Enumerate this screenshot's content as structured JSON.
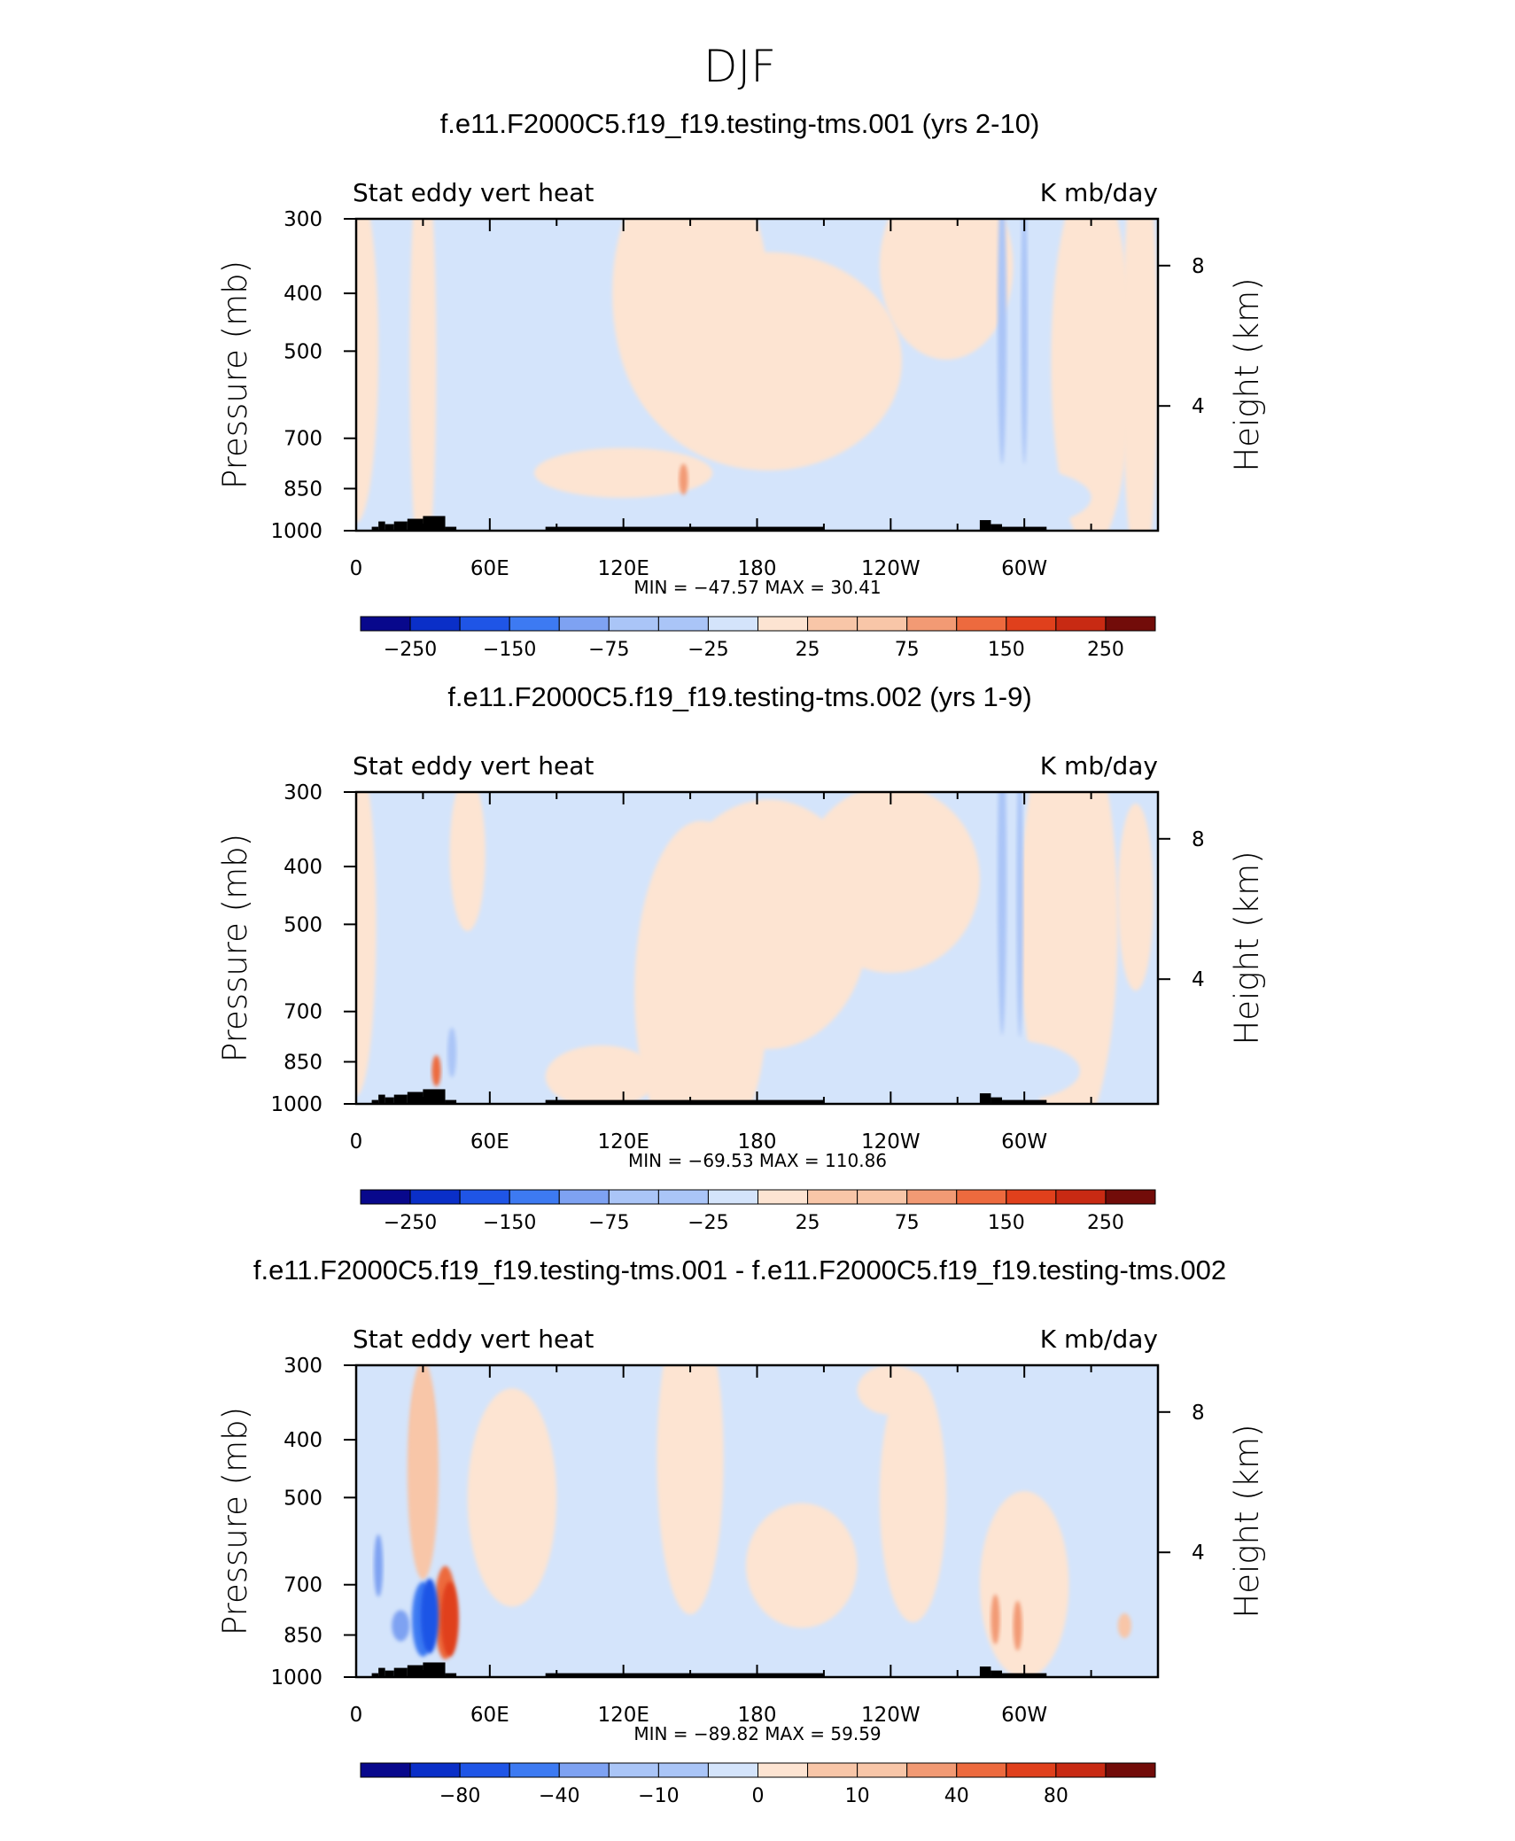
{
  "figure_title": "DJF",
  "colors": {
    "scale": [
      "#08088c",
      "#0a2fc8",
      "#1f55e6",
      "#3d7af2",
      "#7ea2f2",
      "#aac5f7",
      "#d4e4fb",
      "#fde4d2",
      "#f8c6a8",
      "#f29a74",
      "#ed6a3e",
      "#e0401c",
      "#c82a13",
      "#a11a0e",
      "#720c09"
    ],
    "topography": "#000000"
  },
  "chart_data": [
    {
      "type": "heatmap",
      "title": "f.e11.F2000C5.f19_f19.testing-tms.001 (yrs 2-10)",
      "left_string": "Stat eddy vert heat",
      "right_string": "K mb/day",
      "ylabel": "Pressure (mb)",
      "ylabel_right": "Height (km)",
      "x_ticks": [
        "0",
        "60E",
        "120E",
        "180",
        "120W",
        "60W"
      ],
      "y_ticks": [
        "300",
        "400",
        "500",
        "700",
        "850",
        "1000"
      ],
      "y_right_ticks": [
        "8",
        "4"
      ],
      "ylim": [
        1000,
        300
      ],
      "x_range_deg": [
        0,
        360
      ],
      "stats": "MIN = −47.57   MAX =   30.41",
      "min": -47.57,
      "max": 30.41,
      "colorbar_labels": [
        "−250",
        "−150",
        "−75",
        "−25",
        "25",
        "75",
        "150",
        "250"
      ]
    },
    {
      "type": "heatmap",
      "title": "f.e11.F2000C5.f19_f19.testing-tms.002 (yrs 1-9)",
      "left_string": "Stat eddy vert heat",
      "right_string": "K mb/day",
      "ylabel": "Pressure (mb)",
      "ylabel_right": "Height (km)",
      "x_ticks": [
        "0",
        "60E",
        "120E",
        "180",
        "120W",
        "60W"
      ],
      "y_ticks": [
        "300",
        "400",
        "500",
        "700",
        "850",
        "1000"
      ],
      "y_right_ticks": [
        "8",
        "4"
      ],
      "ylim": [
        1000,
        300
      ],
      "x_range_deg": [
        0,
        360
      ],
      "stats": "MIN = −69.53   MAX = 110.86",
      "min": -69.53,
      "max": 110.86,
      "colorbar_labels": [
        "−250",
        "−150",
        "−75",
        "−25",
        "25",
        "75",
        "150",
        "250"
      ]
    },
    {
      "type": "heatmap",
      "title": "f.e11.F2000C5.f19_f19.testing-tms.001 - f.e11.F2000C5.f19_f19.testing-tms.002",
      "left_string": "Stat eddy vert heat",
      "right_string": "K mb/day",
      "ylabel": "Pressure (mb)",
      "ylabel_right": "Height (km)",
      "x_ticks": [
        "0",
        "60E",
        "120E",
        "180",
        "120W",
        "60W"
      ],
      "y_ticks": [
        "300",
        "400",
        "500",
        "700",
        "850",
        "1000"
      ],
      "y_right_ticks": [
        "8",
        "4"
      ],
      "ylim": [
        1000,
        300
      ],
      "x_range_deg": [
        0,
        360
      ],
      "stats": "MIN = −89.82   MAX =   59.59",
      "min": -89.82,
      "max": 59.59,
      "colorbar_labels": [
        "−80",
        "−40",
        "−10",
        "0",
        "10",
        "40",
        "80"
      ]
    }
  ]
}
